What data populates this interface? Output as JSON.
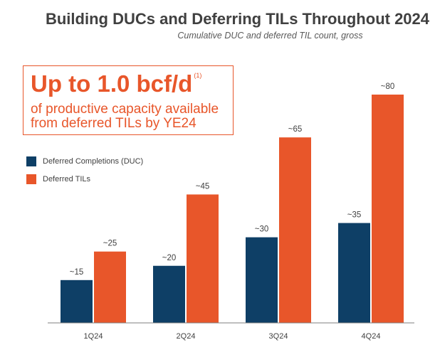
{
  "title": "Building DUCs and Deferring TILs Throughout 2024",
  "subtitle": "Cumulative DUC and deferred TIL count, gross",
  "callout": {
    "headline": "Up to 1.0 bcf/d",
    "footnote": "(1)",
    "line1": "of productive capacity available",
    "line2": "from deferred TILs by YE24"
  },
  "colors": {
    "duc": "#0e3f66",
    "til": "#e8562a",
    "axis": "#7f7f7f",
    "text": "#404040"
  },
  "chart_data": {
    "type": "bar",
    "title": "Building DUCs and Deferring TILs Throughout 2024",
    "subtitle": "Cumulative DUC and deferred TIL count, gross",
    "categories": [
      "1Q24",
      "2Q24",
      "3Q24",
      "4Q24"
    ],
    "series": [
      {
        "name": "Deferred Completions (DUC)",
        "values": [
          15,
          20,
          30,
          35
        ],
        "labels": [
          "~15",
          "~20",
          "~30",
          "~35"
        ],
        "color": "#0e3f66"
      },
      {
        "name": "Deferred TILs",
        "values": [
          25,
          45,
          65,
          80
        ],
        "labels": [
          "~25",
          "~45",
          "~65",
          "~80"
        ],
        "color": "#e8562a"
      }
    ],
    "ylim": [
      0,
      80
    ],
    "grid": false,
    "legend_position": "left"
  }
}
